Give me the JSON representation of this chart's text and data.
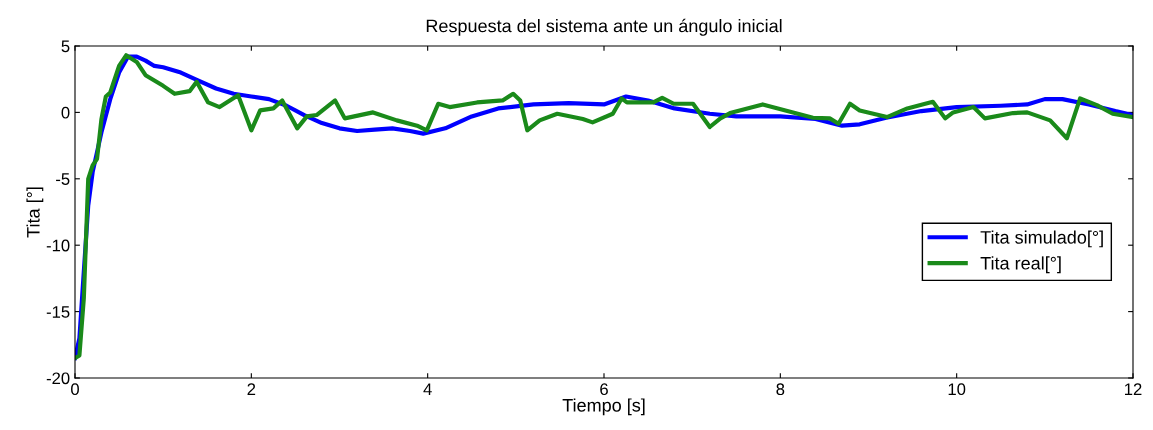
{
  "chart_data": {
    "type": "line",
    "title": "Respuesta del sistema ante un ángulo inicial",
    "xlabel": "Tiempo [s]",
    "ylabel": "Tita [°]",
    "xlim": [
      0,
      12
    ],
    "ylim": [
      -20,
      5
    ],
    "xticks": [
      0,
      2,
      4,
      6,
      8,
      10,
      12
    ],
    "yticks": [
      -20,
      -15,
      -10,
      -5,
      0,
      5
    ],
    "grid": false,
    "legend": "right",
    "line_style": "solid",
    "marker": "none",
    "series": [
      {
        "name": "Tita simulado[°]",
        "color": "#0000ff",
        "x": [
          0,
          0.05,
          0.1,
          0.15,
          0.2,
          0.3,
          0.4,
          0.5,
          0.6,
          0.7,
          0.8,
          0.9,
          1.0,
          1.2,
          1.4,
          1.6,
          1.8,
          2.0,
          2.2,
          2.4,
          2.6,
          2.8,
          3.0,
          3.2,
          3.4,
          3.6,
          3.8,
          3.95,
          4.2,
          4.5,
          4.8,
          5.2,
          5.6,
          6.0,
          6.25,
          6.5,
          6.8,
          7.2,
          7.5,
          8.0,
          8.4,
          8.7,
          8.9,
          9.2,
          9.6,
          10.0,
          10.5,
          10.8,
          11.0,
          11.2,
          11.5,
          11.8,
          12
        ],
        "values": [
          -18.5,
          -17,
          -12,
          -7,
          -4.5,
          -1.5,
          1,
          3,
          4.2,
          4.2,
          3.9,
          3.5,
          3.4,
          3.0,
          2.4,
          1.8,
          1.4,
          1.2,
          1.0,
          0.5,
          -0.2,
          -0.8,
          -1.2,
          -1.4,
          -1.3,
          -1.2,
          -1.4,
          -1.6,
          -1.2,
          -0.3,
          0.3,
          0.6,
          0.7,
          0.6,
          1.2,
          0.9,
          0.3,
          -0.1,
          -0.3,
          -0.3,
          -0.5,
          -1.0,
          -0.9,
          -0.4,
          0.1,
          0.4,
          0.5,
          0.6,
          1.0,
          1.0,
          0.6,
          0.1,
          -0.2
        ]
      },
      {
        "name": "Tita real[°]",
        "color": "#1a8a1a",
        "x": [
          0,
          0.05,
          0.1,
          0.15,
          0.2,
          0.25,
          0.3,
          0.35,
          0.4,
          0.5,
          0.58,
          0.7,
          0.8,
          1.0,
          1.13,
          1.3,
          1.38,
          1.51,
          1.64,
          1.85,
          2.0,
          2.1,
          2.25,
          2.35,
          2.52,
          2.63,
          2.74,
          2.95,
          3.06,
          3.38,
          3.65,
          3.88,
          3.99,
          4.12,
          4.25,
          4.56,
          4.85,
          4.97,
          5.05,
          5.13,
          5.27,
          5.47,
          5.76,
          5.87,
          6.1,
          6.2,
          6.26,
          6.56,
          6.66,
          6.79,
          7.01,
          7.2,
          7.32,
          7.43,
          7.8,
          8.37,
          8.56,
          8.66,
          8.79,
          8.9,
          9.21,
          9.44,
          9.73,
          9.87,
          9.96,
          10.19,
          10.32,
          10.64,
          10.8,
          11.06,
          11.25,
          11.4,
          11.59,
          11.77,
          12
        ],
        "values": [
          -18.5,
          -18.3,
          -14,
          -5,
          -4,
          -3.5,
          -0.5,
          1.2,
          1.5,
          3.5,
          4.3,
          3.8,
          2.8,
          2.0,
          1.4,
          1.6,
          2.3,
          0.75,
          0.4,
          1.3,
          -1.35,
          0.15,
          0.3,
          0.9,
          -1.2,
          -0.3,
          -0.2,
          0.9,
          -0.45,
          0,
          -0.6,
          -1.0,
          -1.35,
          0.65,
          0.4,
          0.75,
          0.9,
          1.4,
          0.9,
          -1.35,
          -0.6,
          -0.1,
          -0.5,
          -0.75,
          -0.1,
          1.05,
          0.75,
          0.75,
          1.1,
          0.65,
          0.65,
          -1.1,
          -0.45,
          -0.05,
          0.6,
          -0.4,
          -0.45,
          -0.85,
          0.65,
          0.15,
          -0.35,
          0.3,
          0.8,
          -0.45,
          0,
          0.4,
          -0.45,
          -0.05,
          0,
          -0.6,
          -1.95,
          1.05,
          0.55,
          -0.1,
          -0.35
        ]
      }
    ]
  }
}
